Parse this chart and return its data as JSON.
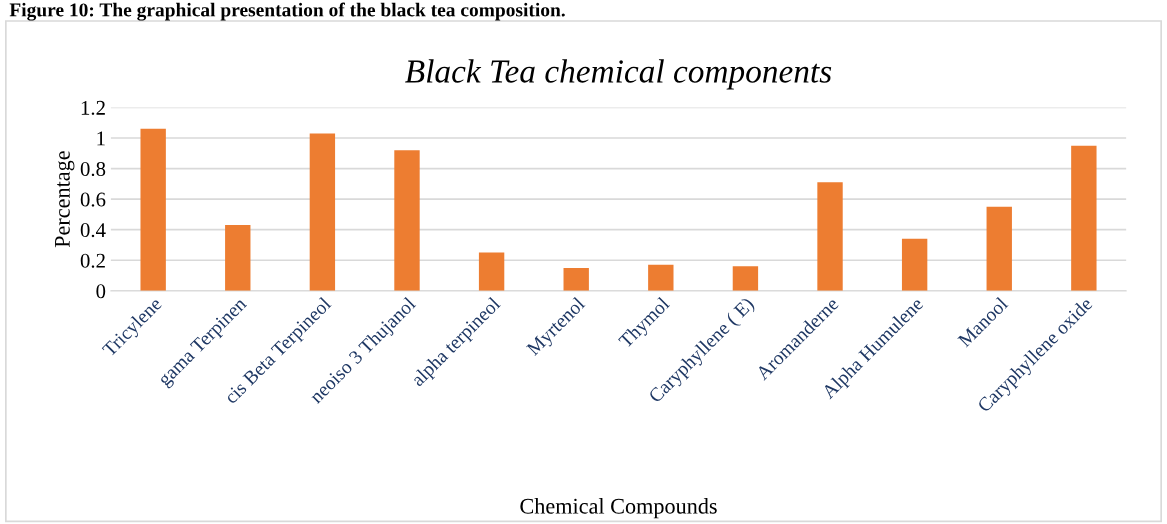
{
  "chart_data": {
    "type": "bar",
    "title": "Black Tea chemical components",
    "xlabel": "Chemical Compounds",
    "ylabel": "Percentage",
    "annotations": [
      "Figure 10: The graphical presentation of the black tea composition."
    ],
    "categories": [
      "Tricylene",
      "gama Terpinen",
      "cis Beta Terpineol",
      "neoiso 3 Thujanol",
      "alpha terpineol",
      "Myrtenol",
      "Thymol",
      "Caryphyllene ( E)",
      "Aromanderne",
      "Alpha Humulene",
      "Manool",
      "Caryphyllene oxide"
    ],
    "values": [
      1.06,
      0.43,
      1.03,
      0.92,
      0.25,
      0.15,
      0.17,
      0.16,
      0.71,
      0.34,
      0.55,
      0.95
    ],
    "color": "#ed7d31",
    "ylim": [
      0,
      1.2
    ],
    "yticks": [
      0,
      0.2,
      0.4,
      0.6,
      0.8,
      1,
      1.2
    ],
    "grid": "y",
    "legend": false
  }
}
